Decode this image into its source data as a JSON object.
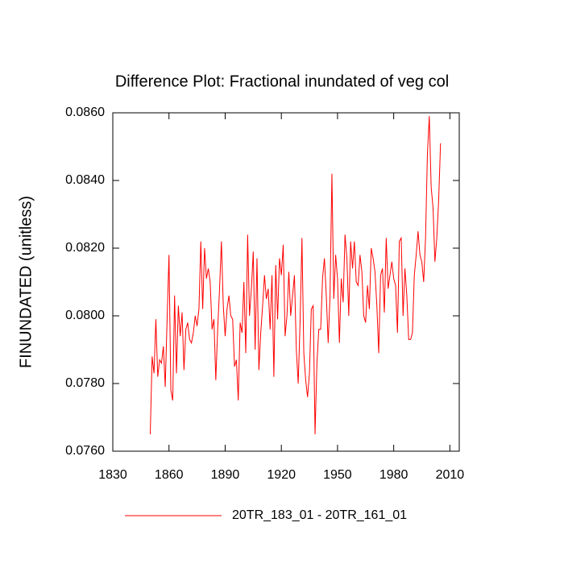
{
  "chart_data": {
    "type": "line",
    "title": "Difference Plot: Fractional inundated of veg col",
    "y_label": "FINUNDATED  (unitless)",
    "x": [
      1850,
      1851,
      1852,
      1853,
      1854,
      1855,
      1856,
      1857,
      1858,
      1859,
      1860,
      1861,
      1862,
      1863,
      1864,
      1865,
      1866,
      1867,
      1868,
      1869,
      1870,
      1871,
      1872,
      1873,
      1874,
      1875,
      1876,
      1877,
      1878,
      1879,
      1880,
      1881,
      1882,
      1883,
      1884,
      1885,
      1886,
      1887,
      1888,
      1889,
      1890,
      1891,
      1892,
      1893,
      1894,
      1895,
      1896,
      1897,
      1898,
      1899,
      1900,
      1901,
      1902,
      1903,
      1904,
      1905,
      1906,
      1907,
      1908,
      1909,
      1910,
      1911,
      1912,
      1913,
      1914,
      1915,
      1916,
      1917,
      1918,
      1919,
      1920,
      1921,
      1922,
      1923,
      1924,
      1925,
      1926,
      1927,
      1928,
      1929,
      1930,
      1931,
      1932,
      1933,
      1934,
      1935,
      1936,
      1937,
      1938,
      1939,
      1940,
      1941,
      1942,
      1943,
      1944,
      1945,
      1946,
      1947,
      1948,
      1949,
      1950,
      1951,
      1952,
      1953,
      1954,
      1955,
      1956,
      1957,
      1958,
      1959,
      1960,
      1961,
      1962,
      1963,
      1964,
      1965,
      1966,
      1967,
      1968,
      1969,
      1970,
      1971,
      1972,
      1973,
      1974,
      1975,
      1976,
      1977,
      1978,
      1979,
      1980,
      1981,
      1982,
      1983,
      1984,
      1985,
      1986,
      1987,
      1988,
      1989,
      1990,
      1991,
      1992,
      1993,
      1994,
      1995,
      1996,
      1997,
      1998,
      1999,
      2000,
      2001,
      2002,
      2003,
      2004,
      2005
    ],
    "series": [
      {
        "name": "20TR_183_01 - 20TR_161_01",
        "color": "#ff0000",
        "values": [
          0.0765,
          0.0788,
          0.0783,
          0.0799,
          0.0782,
          0.0787,
          0.0786,
          0.0791,
          0.0779,
          0.0799,
          0.0818,
          0.0778,
          0.0775,
          0.0806,
          0.0783,
          0.0803,
          0.0794,
          0.0801,
          0.0784,
          0.0796,
          0.0798,
          0.0793,
          0.0792,
          0.0795,
          0.08,
          0.0797,
          0.0802,
          0.0822,
          0.0802,
          0.082,
          0.0811,
          0.0814,
          0.081,
          0.0796,
          0.0799,
          0.0781,
          0.0796,
          0.0808,
          0.0822,
          0.0803,
          0.0794,
          0.0802,
          0.0806,
          0.08,
          0.0799,
          0.0785,
          0.0787,
          0.0775,
          0.0798,
          0.0795,
          0.081,
          0.0789,
          0.0824,
          0.08,
          0.0808,
          0.0819,
          0.079,
          0.0817,
          0.0784,
          0.0795,
          0.0803,
          0.0812,
          0.0805,
          0.0808,
          0.0796,
          0.0812,
          0.0782,
          0.0815,
          0.0799,
          0.0817,
          0.0812,
          0.0821,
          0.0794,
          0.08,
          0.0813,
          0.08,
          0.0806,
          0.0812,
          0.079,
          0.078,
          0.0798,
          0.0823,
          0.0789,
          0.0781,
          0.0776,
          0.0783,
          0.0802,
          0.0803,
          0.0765,
          0.0786,
          0.0796,
          0.0796,
          0.0811,
          0.0817,
          0.0806,
          0.0792,
          0.0806,
          0.0842,
          0.0805,
          0.0818,
          0.0811,
          0.0792,
          0.0811,
          0.0804,
          0.0824,
          0.0817,
          0.08,
          0.0822,
          0.0814,
          0.0822,
          0.081,
          0.0809,
          0.0818,
          0.0813,
          0.08,
          0.0798,
          0.0809,
          0.0802,
          0.082,
          0.0817,
          0.0813,
          0.0803,
          0.0789,
          0.0812,
          0.0814,
          0.0801,
          0.0823,
          0.0808,
          0.0812,
          0.0816,
          0.0811,
          0.0809,
          0.0795,
          0.0822,
          0.0823,
          0.08,
          0.0814,
          0.0806,
          0.0793,
          0.0793,
          0.0795,
          0.0812,
          0.0818,
          0.0825,
          0.0818,
          0.0816,
          0.081,
          0.0823,
          0.0848,
          0.0859,
          0.0838,
          0.0832,
          0.0816,
          0.0823,
          0.0834,
          0.0851
        ]
      }
    ],
    "xlim": [
      1830,
      2015
    ],
    "xticks": [
      1830,
      1860,
      1890,
      1920,
      1950,
      1980,
      2010
    ],
    "ylim": [
      0.076,
      0.086
    ],
    "yticks": [
      {
        "value": 0.076,
        "label": "0.0760"
      },
      {
        "value": 0.078,
        "label": "0.0780"
      },
      {
        "value": 0.08,
        "label": "0.0800"
      },
      {
        "value": 0.082,
        "label": "0.0820"
      },
      {
        "value": 0.084,
        "label": "0.0840"
      },
      {
        "value": 0.086,
        "label": "0.0860"
      }
    ],
    "legend": "bottom"
  }
}
